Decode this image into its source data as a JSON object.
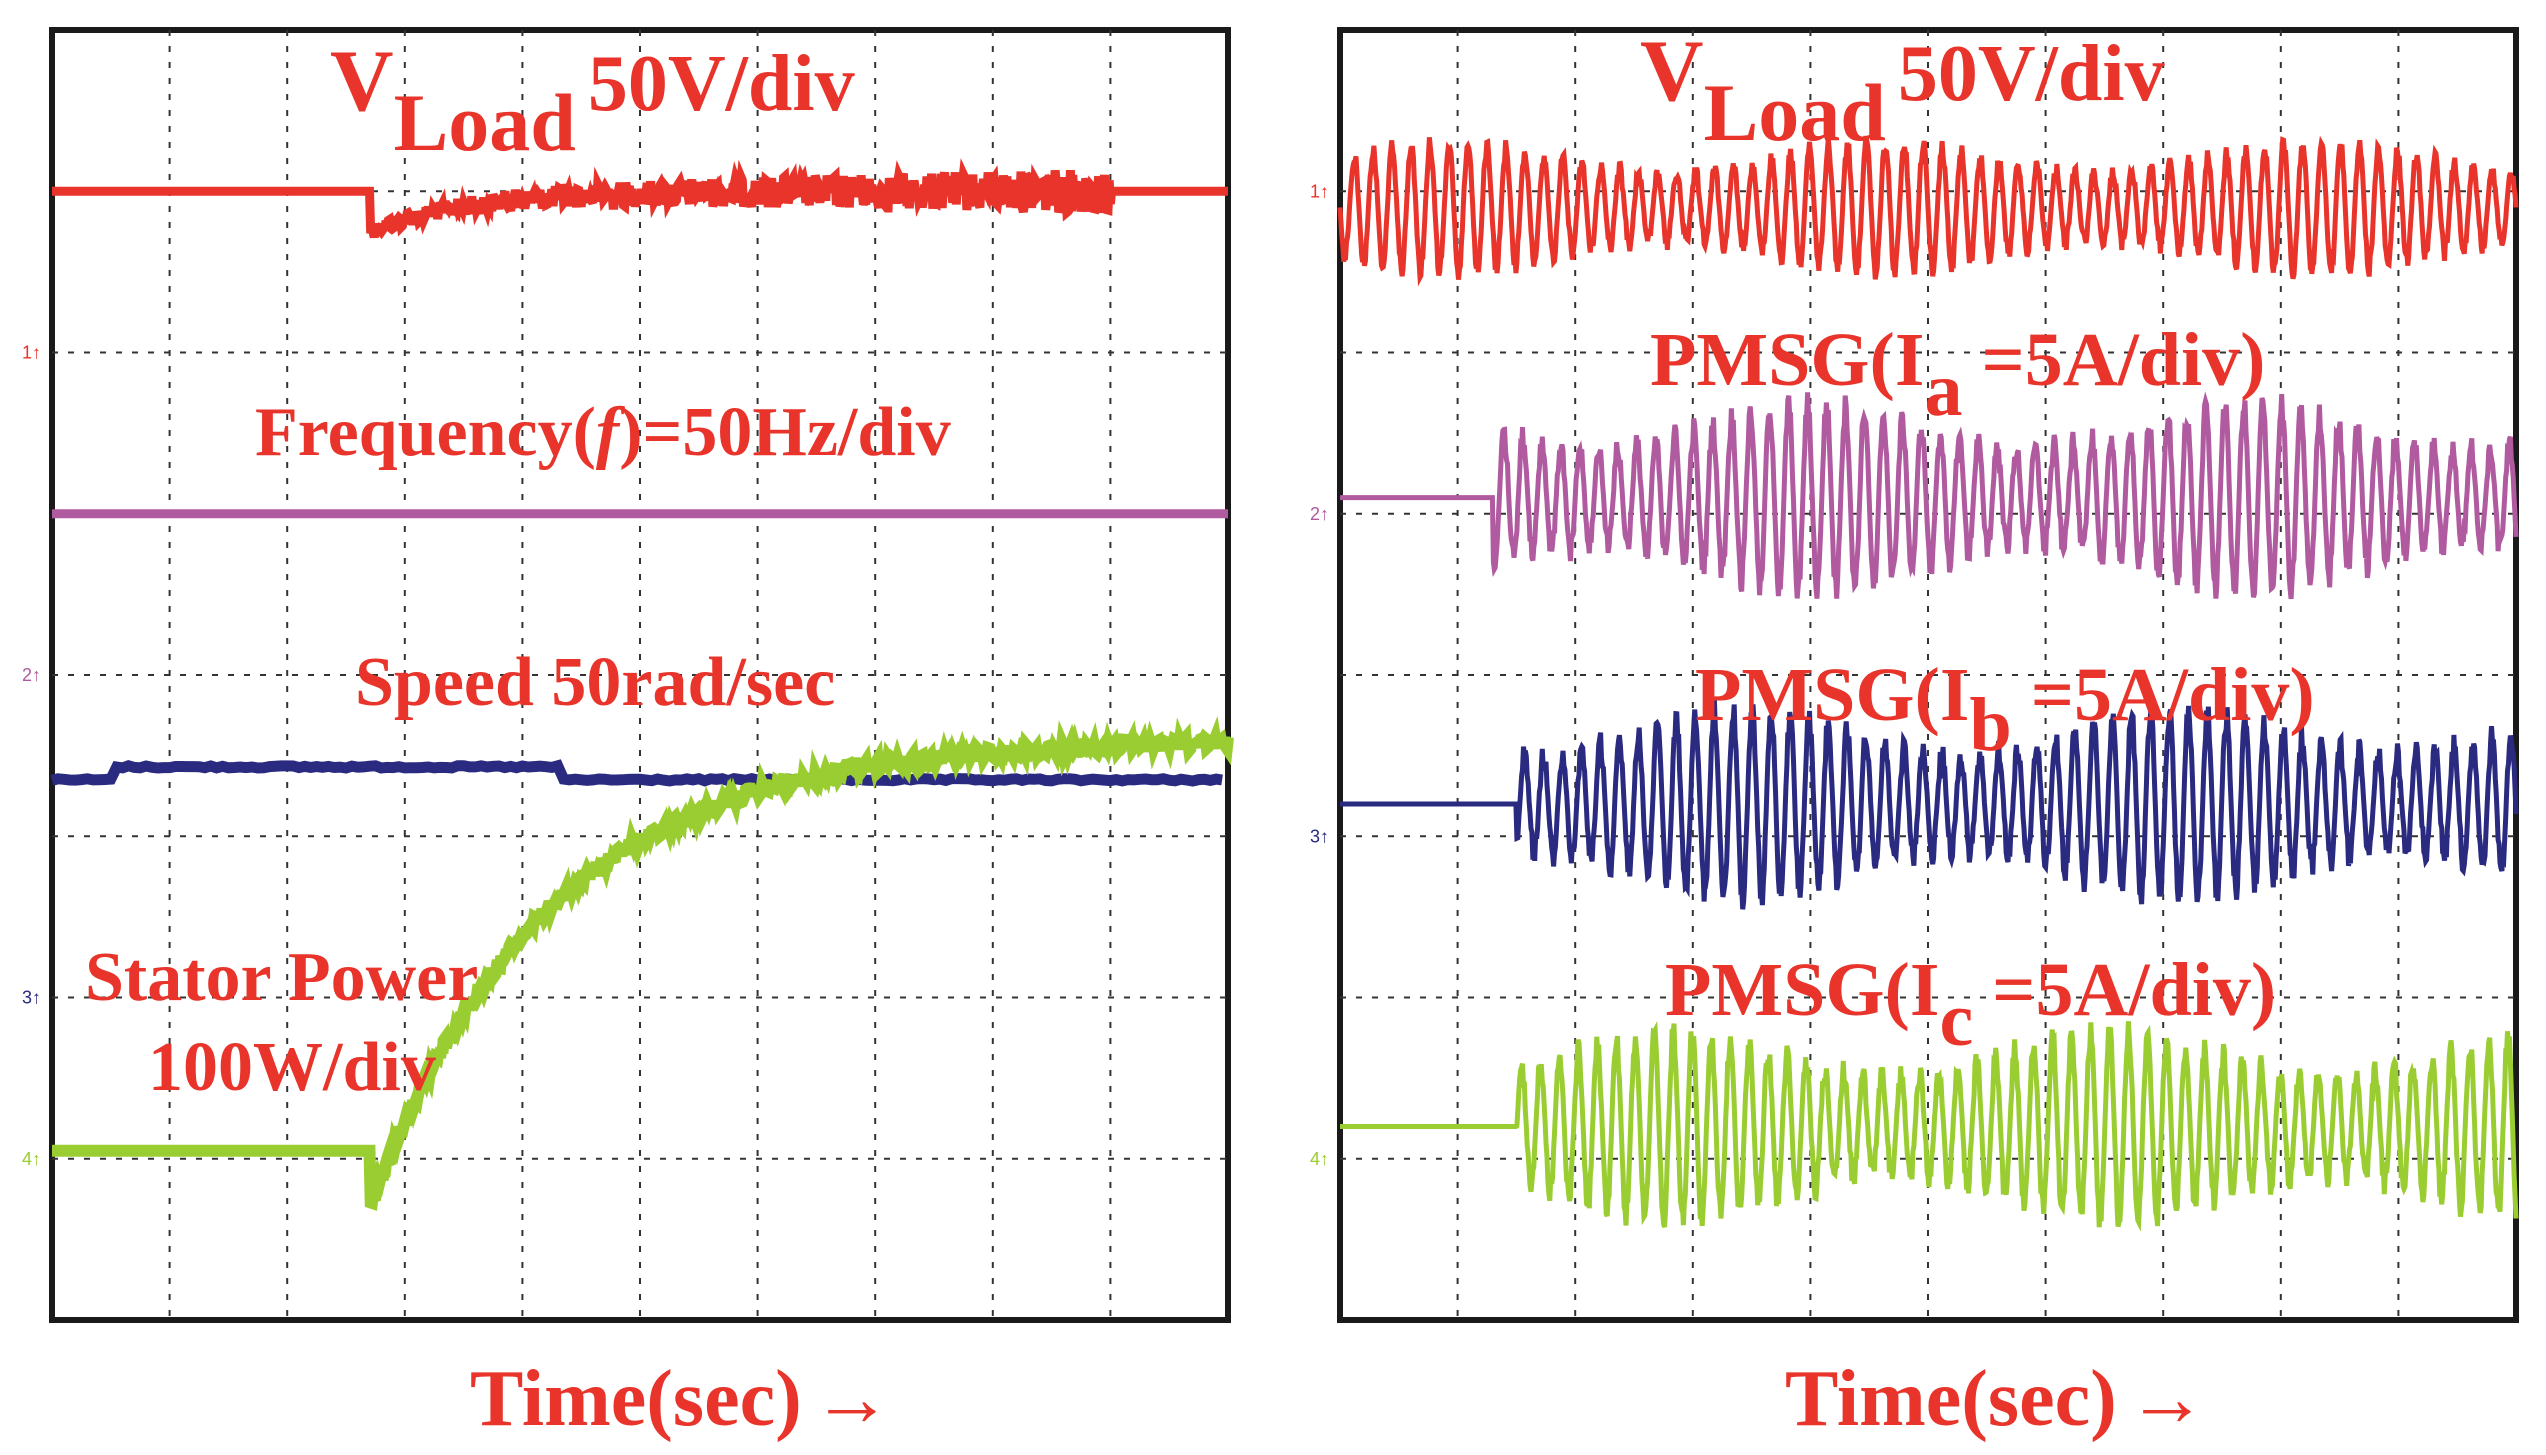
{
  "colors": {
    "red": "#e8342a",
    "magenta": "#b05aa0",
    "navy": "#2a2a80",
    "green": "#9acd32",
    "grid": "#333333",
    "frame": "#1a1a1a"
  },
  "chart_data": [
    {
      "type": "line",
      "name": "left-scope",
      "xlabel": "Time(sec)",
      "x_arrow": "→",
      "grid": true,
      "divisions": {
        "x": 10,
        "y": 8
      },
      "channel_markers": [
        {
          "text": "1↑",
          "color": "#e8342a",
          "y_div": 2.0
        },
        {
          "text": "2↑",
          "color": "#b05aa0",
          "y_div": 4.0
        },
        {
          "text": "3↑",
          "color": "#2a2a80",
          "y_div": 6.0
        },
        {
          "text": "4↑",
          "color": "#9acd32",
          "y_div": 7.0
        }
      ],
      "series": [
        {
          "name": "V_Load",
          "label_main": "V",
          "label_sub": "Load",
          "label_rest": "50V/div",
          "color": "#e8342a",
          "base_div": 1.0,
          "step_at_div": 2.7,
          "dip_div": 0.25,
          "noise_div": 0.06
        },
        {
          "name": "Frequency",
          "label_main": "Frequency(",
          "label_italic": "f",
          "label_rest": ")=50Hz/div",
          "color": "#b05aa0",
          "base_div": 3.0
        },
        {
          "name": "Speed",
          "label_main": "Speed 50rad/sec",
          "color": "#2a2a80",
          "base_div": 4.65,
          "bump_div": 0.08,
          "bump_range": [
            0.5,
            4.3
          ]
        },
        {
          "name": "Stator Power",
          "label_main": "Stator Power",
          "label_line2": "100W/div",
          "color": "#9acd32",
          "start_div": 6.95,
          "dip_div": 7.3,
          "final_div": 4.4,
          "step_at_div": 2.7
        }
      ]
    },
    {
      "type": "line",
      "name": "right-scope",
      "xlabel": "Time(sec)",
      "x_arrow": "→",
      "grid": true,
      "divisions": {
        "x": 10,
        "y": 8
      },
      "channel_markers": [
        {
          "text": "1↑",
          "color": "#e8342a",
          "y_div": 1.0
        },
        {
          "text": "2↑",
          "color": "#b05aa0",
          "y_div": 3.0
        },
        {
          "text": "3↑",
          "color": "#2a2a80",
          "y_div": 5.0
        },
        {
          "text": "4↑",
          "color": "#9acd32",
          "y_div": 7.0
        }
      ],
      "series": [
        {
          "name": "V_Load",
          "label_main": "V",
          "label_sub": "Load",
          "label_rest": "50V/div",
          "color": "#e8342a",
          "center_div": 1.1,
          "amp_div": 0.38,
          "start_div": 0.0
        },
        {
          "name": "PMSG Ia",
          "label_main": "PMSG(I",
          "label_sub": "a",
          "label_rest": " =5A/div)",
          "color": "#b05aa0",
          "center_div": 2.9,
          "amp_div": 0.55,
          "start_div": 1.3
        },
        {
          "name": "PMSG Ib",
          "label_main": "PMSG(I",
          "label_sub": "b",
          "label_rest": " =5A/div)",
          "color": "#2a2a80",
          "center_div": 4.8,
          "amp_div": 0.55,
          "start_div": 1.5
        },
        {
          "name": "PMSG Ic",
          "label_main": "PMSG(I",
          "label_sub": "c",
          "label_rest": " =5A/div)",
          "color": "#9acd32",
          "center_div": 6.8,
          "amp_div": 0.55,
          "start_div": 1.5
        }
      ]
    }
  ]
}
